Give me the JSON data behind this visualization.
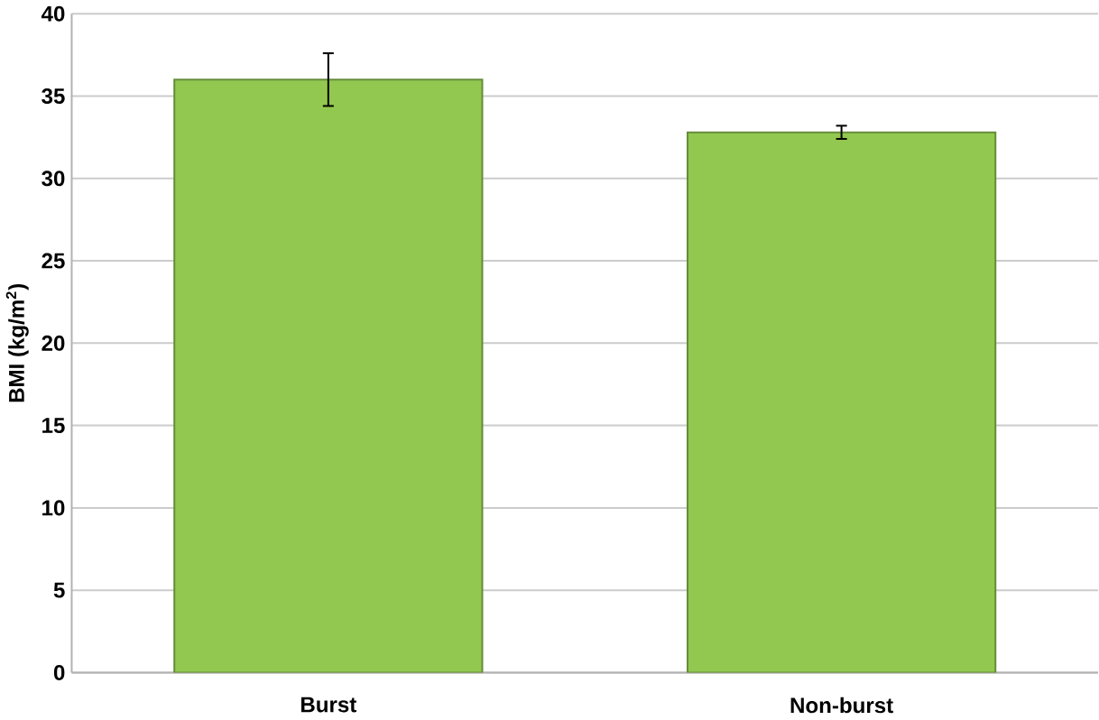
{
  "chart_data": {
    "type": "bar",
    "ylabel": "BMI (kg/m$^{2}$)",
    "categories": [
      "Burst",
      "Non-burst"
    ],
    "values": [
      36.0,
      32.8
    ],
    "errors": [
      1.6,
      0.4
    ],
    "color": "#92c850",
    "ylim": [
      0,
      40
    ],
    "yticks": [
      0,
      5,
      10,
      15,
      20,
      25,
      30,
      35,
      40
    ],
    "grid": "y"
  }
}
